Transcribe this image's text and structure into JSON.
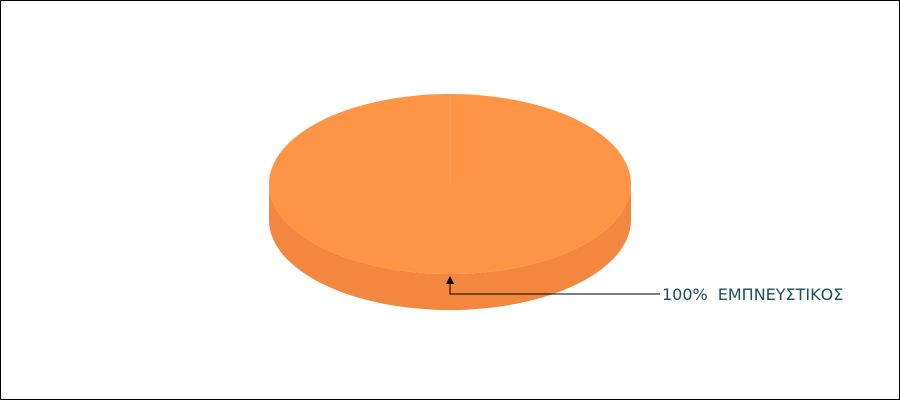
{
  "chart_data": {
    "type": "pie",
    "title": "",
    "categories": [
      "ΕΜΠΝΕΥΣΤΙΚΟΣ"
    ],
    "values": [
      100
    ],
    "labels": [
      {
        "percent": "100%",
        "name": "ΕΜΠΝΕΥΣΤΙΚΟΣ"
      }
    ],
    "colors": {
      "slice_top": "#fd9446",
      "slice_side": "#f4873f",
      "slice_seam": "#fca05e",
      "label_text": "#1f4e5a",
      "leader_line": "#000000"
    },
    "three_d": true,
    "legend": "none"
  }
}
